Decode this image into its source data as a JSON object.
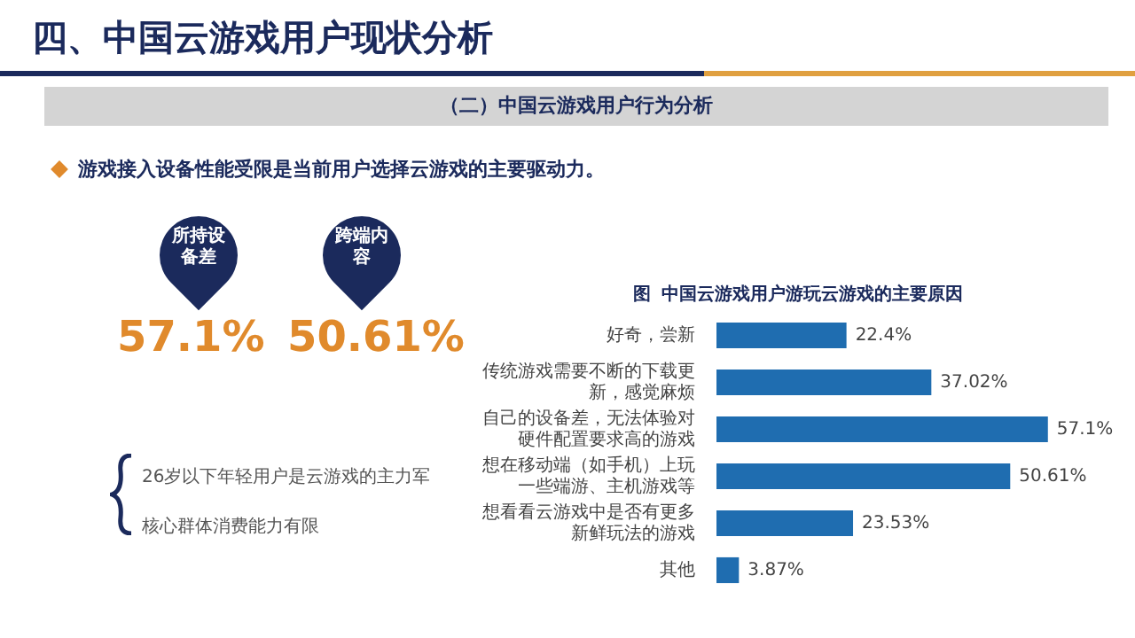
{
  "chart_data": {
    "type": "bar",
    "orientation": "horizontal",
    "title": "图  中国云游戏用户游玩云游戏的主要原因",
    "categories": [
      "好奇，尝新",
      "传统游戏需要不断的下载更新，感觉麻烦",
      "自己的设备差，无法体验对硬件配置要求高的游戏",
      "想在移动端（如手机）上玩一些端游、主机游戏等",
      "想看看云游戏中是否有更多新鲜玩法的游戏",
      "其他"
    ],
    "values": [
      22.4,
      37.02,
      57.1,
      50.61,
      23.53,
      3.87
    ],
    "value_labels": [
      "22.4%",
      "37.02%",
      "57.1%",
      "50.61%",
      "23.53%",
      "3.87%"
    ],
    "color": "#1f6db0",
    "legend": false,
    "annotations": [
      "四、中国云游戏用户现状分析",
      "（二）中国云游戏用户行为分析",
      "游戏接入设备性能受限是当前用户选择云游戏的主要驱动力。",
      "所持设备差",
      "跨端内容",
      "57.1%",
      "50.61%",
      "26岁以下年轻用户是云游戏的主力军",
      "核心群体消费能力有限"
    ]
  }
}
